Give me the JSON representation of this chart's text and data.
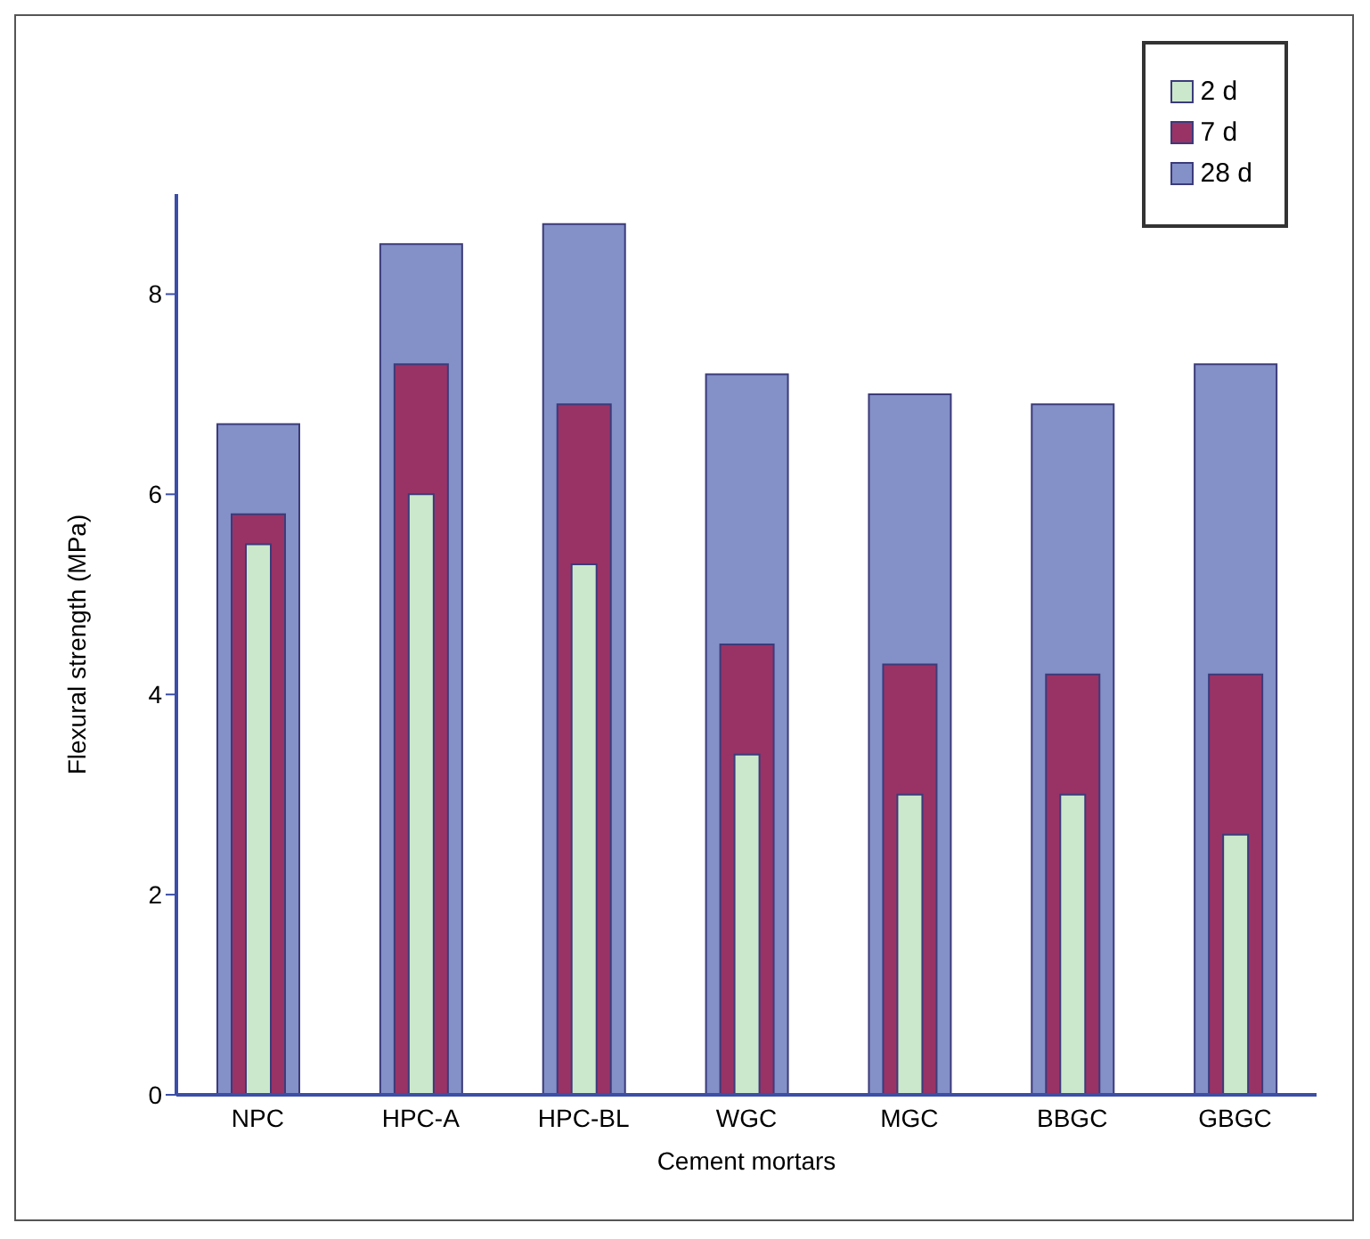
{
  "chart_data": {
    "type": "bar",
    "xlabel": "Cement mortars",
    "ylabel": "Flexural strength (MPa)",
    "categories": [
      "NPC",
      "HPC-A",
      "HPC-BL",
      "WGC",
      "MGC",
      "BBGC",
      "GBGC"
    ],
    "series": [
      {
        "name": "2 d",
        "color": "#cce8cc",
        "values": [
          5.5,
          6.0,
          5.3,
          3.4,
          3.0,
          3.0,
          2.6
        ]
      },
      {
        "name": "7 d",
        "color": "#993366",
        "values": [
          5.8,
          7.3,
          6.9,
          4.5,
          4.3,
          4.2,
          4.2
        ]
      },
      {
        "name": "28 d",
        "color": "#8490c8",
        "values": [
          6.7,
          8.5,
          8.7,
          7.2,
          7.0,
          6.9,
          7.3
        ]
      }
    ],
    "ylim": [
      0,
      9
    ],
    "yticks": [
      0,
      2,
      4,
      6,
      8
    ],
    "legend": "top right"
  }
}
